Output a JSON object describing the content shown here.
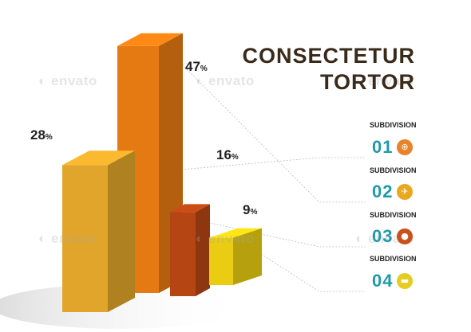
{
  "title": {
    "line1": "CONSECTETUR",
    "line2": "TORTOR"
  },
  "chart_data": {
    "type": "bar",
    "style": "3d",
    "categories": [
      "01",
      "02",
      "03",
      "04"
    ],
    "values": [
      28,
      47,
      16,
      9
    ],
    "value_suffix": "%",
    "title": "CONSECTETUR TORTOR",
    "colors": [
      "#e0a52a",
      "#e57a12",
      "#b54513",
      "#eacd12"
    ],
    "ylim": [
      0,
      50
    ],
    "grid": false,
    "legend": "right"
  },
  "legend": [
    {
      "label": "SUBDIVISION",
      "number": "01",
      "icon": "globe-icon",
      "glyph": "⊕",
      "color": "#e8832a"
    },
    {
      "label": "SUBDIVISION",
      "number": "02",
      "icon": "bird-icon",
      "glyph": "✈",
      "color": "#e8a921"
    },
    {
      "label": "SUBDIVISION",
      "number": "03",
      "icon": "person-icon",
      "glyph": "●",
      "color": "#c9521c"
    },
    {
      "label": "SUBDIVISION",
      "number": "04",
      "icon": "chat-bubble-icon",
      "glyph": "▬",
      "color": "#e6cc20"
    }
  ],
  "number_color": "#1f9aaa",
  "watermark": "envato"
}
